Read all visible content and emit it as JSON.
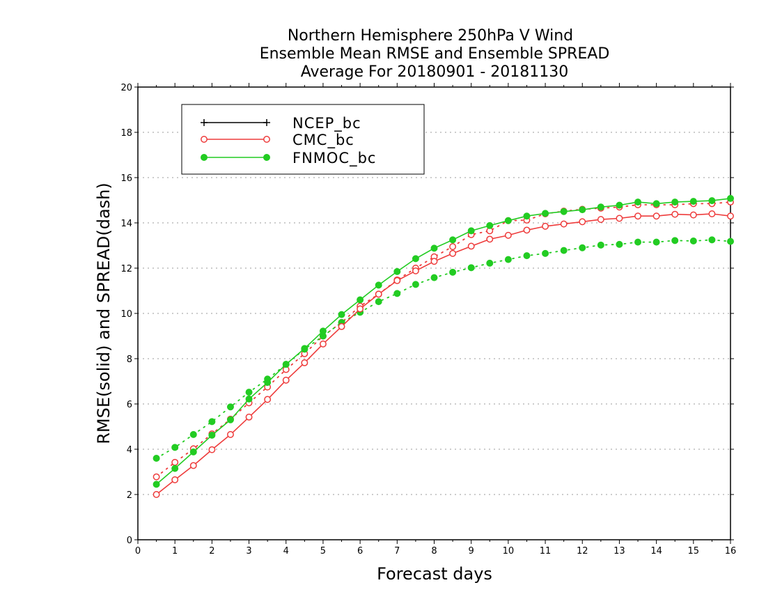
{
  "chart_data": {
    "type": "line",
    "title": [
      "Northern Hemisphere 250hPa V Wind",
      "Ensemble Mean RMSE and Ensemble SPREAD",
      "Average For 20180901 - 20181130"
    ],
    "xlabel": "Forecast days",
    "ylabel": "RMSE(solid) and SPREAD(dash)",
    "xlim": [
      0,
      16
    ],
    "ylim": [
      0,
      20
    ],
    "xticks": [
      0,
      1,
      2,
      3,
      4,
      5,
      6,
      7,
      8,
      9,
      10,
      11,
      12,
      13,
      14,
      15,
      16
    ],
    "yticks": [
      0,
      2,
      4,
      6,
      8,
      10,
      12,
      14,
      16,
      18,
      20
    ],
    "grid": true,
    "legend_position": "top-left",
    "x": [
      0.5,
      1,
      1.5,
      2,
      2.5,
      3,
      3.5,
      4,
      4.5,
      5,
      5.5,
      6,
      6.5,
      7,
      7.5,
      8,
      8.5,
      9,
      9.5,
      10,
      10.5,
      11,
      11.5,
      12,
      12.5,
      13,
      13.5,
      14,
      14.5,
      15,
      15.5,
      16
    ],
    "series": [
      {
        "name": "NCEP_bc",
        "color": "#000000",
        "marker": "plus",
        "rmse": [],
        "spread": []
      },
      {
        "name": "CMC_bc",
        "color": "#ee3b3b",
        "marker": "open-circle",
        "rmse": [
          2.0,
          2.65,
          3.28,
          3.98,
          4.65,
          5.42,
          6.2,
          7.05,
          7.82,
          8.65,
          9.42,
          10.2,
          10.85,
          11.45,
          11.88,
          12.3,
          12.65,
          12.97,
          13.28,
          13.45,
          13.68,
          13.85,
          13.95,
          14.05,
          14.15,
          14.2,
          14.3,
          14.3,
          14.38,
          14.35,
          14.4,
          14.3
        ],
        "spread": [
          2.78,
          3.42,
          4.02,
          4.68,
          5.33,
          6.05,
          6.75,
          7.52,
          8.22,
          9.0,
          9.6,
          10.32,
          10.85,
          11.48,
          12.0,
          12.5,
          12.95,
          13.48,
          13.65,
          14.1,
          14.12,
          14.4,
          14.52,
          14.6,
          14.65,
          14.7,
          14.8,
          14.8,
          14.8,
          14.85,
          14.85,
          14.92
        ]
      },
      {
        "name": "FNMOC_bc",
        "color": "#22cc22",
        "marker": "filled-circle",
        "rmse": [
          2.45,
          3.15,
          3.88,
          4.62,
          5.3,
          6.22,
          6.95,
          7.75,
          8.45,
          9.22,
          9.95,
          10.6,
          11.25,
          11.85,
          12.42,
          12.88,
          13.25,
          13.65,
          13.88,
          14.1,
          14.3,
          14.42,
          14.5,
          14.58,
          14.7,
          14.78,
          14.92,
          14.85,
          14.92,
          14.95,
          14.98,
          15.08
        ],
        "spread": [
          3.6,
          4.08,
          4.65,
          5.22,
          5.87,
          6.52,
          7.1,
          7.75,
          8.42,
          9.0,
          9.6,
          10.05,
          10.52,
          10.88,
          11.28,
          11.58,
          11.82,
          12.02,
          12.22,
          12.38,
          12.55,
          12.65,
          12.78,
          12.9,
          13.02,
          13.05,
          13.15,
          13.15,
          13.22,
          13.2,
          13.25,
          13.18
        ]
      }
    ]
  }
}
